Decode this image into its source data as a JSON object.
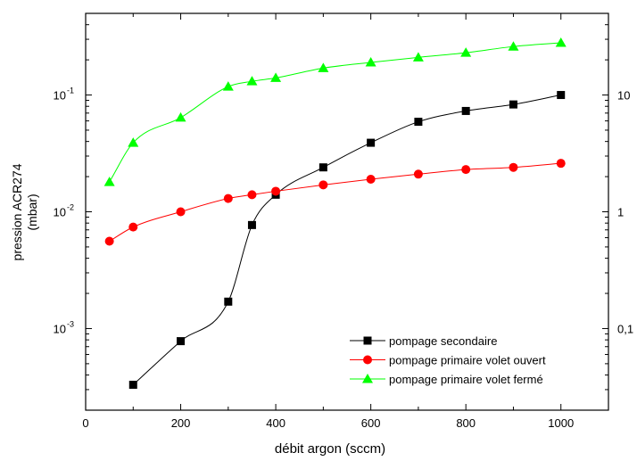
{
  "chart_data": {
    "type": "line",
    "xlabel": "débit argon (sccm)",
    "ylabel_line1": "pression ACR274",
    "ylabel_line2": "(mbar)",
    "xlim": [
      0,
      1100
    ],
    "ylim": [
      0.0002,
      0.5
    ],
    "yscale": "log",
    "x_ticks": [
      0,
      200,
      400,
      600,
      800,
      1000
    ],
    "x_tick_labels": [
      "0",
      "200",
      "400",
      "600",
      "800",
      "1000"
    ],
    "y_ticks_left": [
      {
        "value": 0.1,
        "mantissa": "10",
        "exponent": "-1"
      },
      {
        "value": 0.01,
        "mantissa": "10",
        "exponent": "-2"
      },
      {
        "value": 0.001,
        "mantissa": "10",
        "exponent": "-3"
      }
    ],
    "y_ticks_right": [
      {
        "value": 0.1,
        "label": "10"
      },
      {
        "value": 0.01,
        "label": "1"
      },
      {
        "value": 0.001,
        "label": "0,1"
      }
    ],
    "legend_position": "bottom-right",
    "series": [
      {
        "name": "pompage secondaire",
        "color": "#000000",
        "marker": "square",
        "x": [
          100,
          200,
          300,
          350,
          400,
          500,
          600,
          700,
          800,
          900,
          1000
        ],
        "y": [
          0.00033,
          0.00078,
          0.0017,
          0.0077,
          0.014,
          0.024,
          0.039,
          0.059,
          0.073,
          0.083,
          0.1
        ]
      },
      {
        "name": "pompage primaire volet ouvert",
        "color": "#ff0000",
        "marker": "circle",
        "x": [
          50,
          100,
          200,
          300,
          350,
          400,
          500,
          600,
          700,
          800,
          900,
          1000
        ],
        "y": [
          0.0056,
          0.0074,
          0.01,
          0.013,
          0.014,
          0.015,
          0.017,
          0.019,
          0.021,
          0.023,
          0.024,
          0.026
        ]
      },
      {
        "name": "pompage primaire volet fermé",
        "color": "#00ff00",
        "marker": "triangle",
        "x": [
          50,
          100,
          200,
          300,
          350,
          400,
          500,
          600,
          700,
          800,
          900,
          1000
        ],
        "y": [
          0.018,
          0.039,
          0.064,
          0.118,
          0.131,
          0.14,
          0.17,
          0.19,
          0.21,
          0.23,
          0.26,
          0.28
        ]
      }
    ]
  }
}
